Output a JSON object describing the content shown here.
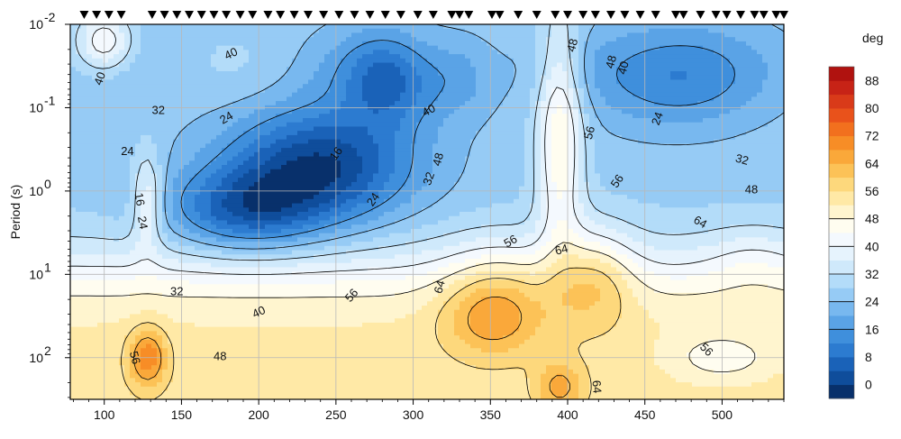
{
  "chart_data": {
    "type": "contour",
    "quantity": "phase",
    "xlabel": "",
    "ylabel": "Period (s)",
    "xlim": [
      78,
      540
    ],
    "ylim_log10": [
      -2,
      2.5
    ],
    "x_ticks": [
      100,
      150,
      200,
      250,
      300,
      350,
      400,
      450,
      500
    ],
    "y_ticks": [
      {
        "value": -2,
        "base": "10",
        "exp": "-2"
      },
      {
        "value": -1,
        "base": "10",
        "exp": "-1"
      },
      {
        "value": 0,
        "base": "10",
        "exp": "0"
      },
      {
        "value": 1,
        "base": "10",
        "exp": "1"
      },
      {
        "value": 2,
        "base": "10",
        "exp": "2"
      }
    ],
    "grid": true,
    "stations_x": [
      87,
      95,
      103,
      111,
      131,
      139,
      147,
      155,
      163,
      171,
      179,
      188,
      196,
      206,
      214,
      223,
      232,
      242,
      252,
      262,
      272,
      282,
      292,
      303,
      313,
      325,
      330,
      336,
      351,
      356,
      368,
      380,
      392,
      400,
      410,
      418,
      428,
      437,
      447,
      457,
      470,
      475,
      486,
      496,
      503,
      512,
      521,
      527,
      535,
      540
    ],
    "colorbar": {
      "unit": "deg",
      "levels": [
        -4,
        0,
        4,
        8,
        12,
        16,
        20,
        24,
        28,
        32,
        36,
        40,
        44,
        48,
        52,
        56,
        60,
        64,
        68,
        72,
        76,
        80,
        84,
        88,
        92
      ],
      "tick_labels": [
        "0",
        "8",
        "16",
        "24",
        "32",
        "40",
        "48",
        "56",
        "64",
        "72",
        "80",
        "88"
      ],
      "tick_values": [
        0,
        8,
        16,
        24,
        32,
        40,
        48,
        56,
        64,
        72,
        80,
        88
      ],
      "colors": [
        "#08306b",
        "#0f4d9b",
        "#1a62b8",
        "#2c7bd0",
        "#3f8fdc",
        "#5aa3e6",
        "#78b8ef",
        "#96cbf5",
        "#b3dcf9",
        "#cfe9fb",
        "#e6f3fd",
        "#f4f9fe",
        "#fffdf0",
        "#fff5cf",
        "#ffe9a6",
        "#fdd87c",
        "#fcc257",
        "#faa83a",
        "#f78d26",
        "#f2701e",
        "#e9521b",
        "#d93a19",
        "#c72316",
        "#b0120f"
      ]
    },
    "contour_labels": [
      {
        "text": "40",
        "x": 97,
        "y": -1.35,
        "rot": -70
      },
      {
        "text": "40",
        "x": 182,
        "y": -1.65,
        "rot": -25
      },
      {
        "text": "32",
        "x": 135,
        "y": -0.97,
        "rot": 0
      },
      {
        "text": "24",
        "x": 115,
        "y": -0.48,
        "rot": 0
      },
      {
        "text": "24",
        "x": 179,
        "y": -0.88,
        "rot": -30
      },
      {
        "text": "16",
        "x": 250,
        "y": -0.45,
        "rot": -55
      },
      {
        "text": "16",
        "x": 123,
        "y": 0.1,
        "rot": 80
      },
      {
        "text": "24",
        "x": 125,
        "y": 0.38,
        "rot": 80
      },
      {
        "text": "24",
        "x": 274,
        "y": 0.1,
        "rot": -55
      },
      {
        "text": "32",
        "x": 310,
        "y": -0.15,
        "rot": -70
      },
      {
        "text": "48",
        "x": 316,
        "y": -0.38,
        "rot": -75
      },
      {
        "text": "40",
        "x": 310,
        "y": -0.97,
        "rot": -30
      },
      {
        "text": "48",
        "x": 403,
        "y": -1.75,
        "rot": -75
      },
      {
        "text": "48",
        "x": 428,
        "y": -1.55,
        "rot": -75
      },
      {
        "text": "40",
        "x": 436,
        "y": -1.48,
        "rot": -75
      },
      {
        "text": "56",
        "x": 414,
        "y": -0.7,
        "rot": -75
      },
      {
        "text": "56",
        "x": 363,
        "y": 0.6,
        "rot": -30
      },
      {
        "text": "64",
        "x": 396,
        "y": 0.7,
        "rot": -15
      },
      {
        "text": "56",
        "x": 432,
        "y": -0.12,
        "rot": -55
      },
      {
        "text": "64",
        "x": 486,
        "y": 0.37,
        "rot": 30
      },
      {
        "text": "24",
        "x": 458,
        "y": -0.87,
        "rot": -70
      },
      {
        "text": "32",
        "x": 513,
        "y": -0.38,
        "rot": 15
      },
      {
        "text": "48",
        "x": 519,
        "y": -0.02,
        "rot": 0
      },
      {
        "text": "32",
        "x": 147,
        "y": 1.2,
        "rot": 0
      },
      {
        "text": "40",
        "x": 200,
        "y": 1.45,
        "rot": -25
      },
      {
        "text": "56",
        "x": 260,
        "y": 1.25,
        "rot": -50
      },
      {
        "text": "64",
        "x": 317,
        "y": 1.15,
        "rot": -75
      },
      {
        "text": "48",
        "x": 175,
        "y": 1.98,
        "rot": 0
      },
      {
        "text": "56",
        "x": 120,
        "y": 2.0,
        "rot": 75
      },
      {
        "text": "56",
        "x": 490,
        "y": 1.9,
        "rot": 45
      },
      {
        "text": "64",
        "x": 419,
        "y": 2.35,
        "rot": 85
      }
    ]
  }
}
